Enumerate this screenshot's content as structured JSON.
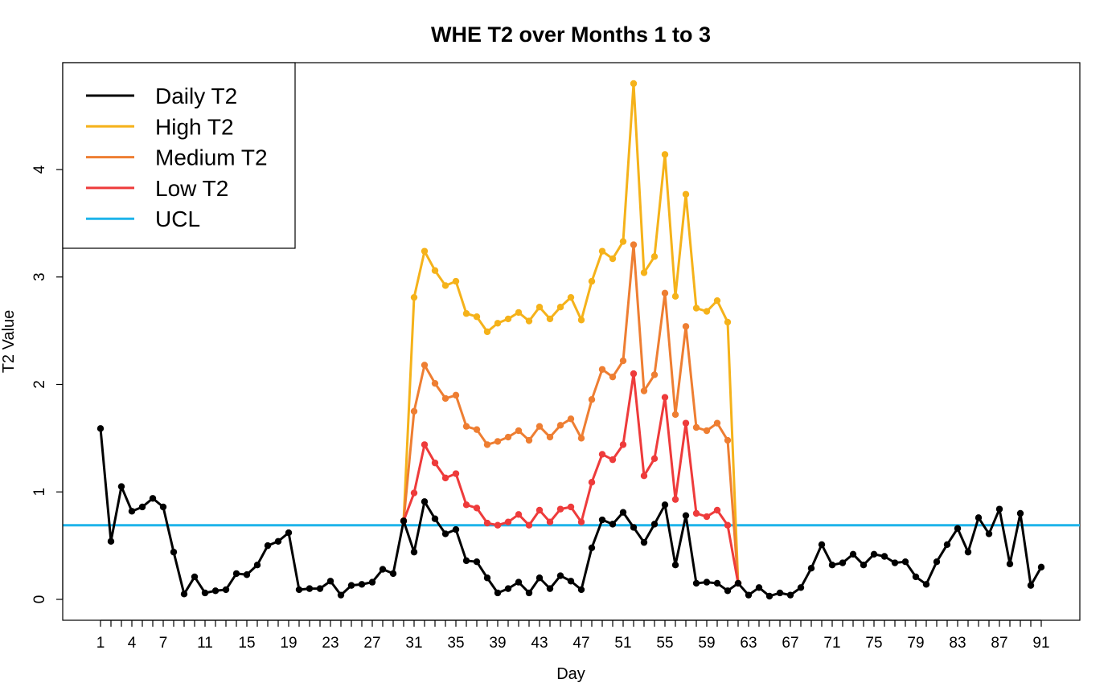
{
  "chart_data": {
    "type": "line",
    "title": "WHE T2 over Months 1 to 3",
    "xlabel": "Day",
    "ylabel": "T2 Value",
    "xlim": [
      1,
      91
    ],
    "ylim": [
      0,
      4.8
    ],
    "x_tick_labels": [
      1,
      4,
      7,
      11,
      15,
      19,
      23,
      27,
      31,
      35,
      39,
      43,
      47,
      51,
      55,
      59,
      63,
      67,
      71,
      75,
      79,
      83,
      87,
      91
    ],
    "x_tick_marks": [
      1,
      2,
      3,
      4,
      5,
      6,
      7,
      8,
      9,
      10,
      11,
      12,
      13,
      14,
      15,
      16,
      17,
      18,
      19,
      20,
      21,
      22,
      23,
      24,
      25,
      26,
      27,
      28,
      29,
      30,
      31,
      32,
      33,
      34,
      35,
      36,
      37,
      38,
      39,
      40,
      41,
      42,
      43,
      44,
      45,
      46,
      47,
      48,
      49,
      50,
      51,
      52,
      53,
      54,
      55,
      56,
      57,
      58,
      59,
      60,
      61,
      62,
      63,
      64,
      65,
      66,
      67,
      68,
      69,
      70,
      71,
      72,
      73,
      74,
      75,
      76,
      77,
      78,
      79,
      80,
      81,
      82,
      83,
      84,
      85,
      86,
      87,
      88,
      89,
      90,
      91
    ],
    "y_ticks": [
      0,
      1,
      2,
      3,
      4
    ],
    "grid": false,
    "legend_position": "top-left",
    "series": [
      {
        "name": "High T2",
        "color": "#F5B21A",
        "x": [
          30,
          31,
          32,
          33,
          34,
          35,
          36,
          37,
          38,
          39,
          40,
          41,
          42,
          43,
          44,
          45,
          46,
          47,
          48,
          49,
          50,
          51,
          52,
          53,
          54,
          55,
          56,
          57,
          58,
          59,
          60,
          61,
          62
        ],
        "values": [
          0.73,
          2.81,
          3.24,
          3.06,
          2.92,
          2.96,
          2.66,
          2.63,
          2.49,
          2.57,
          2.61,
          2.67,
          2.59,
          2.72,
          2.61,
          2.72,
          2.81,
          2.6,
          2.96,
          3.24,
          3.17,
          3.33,
          4.8,
          3.04,
          3.19,
          4.14,
          2.82,
          3.77,
          2.71,
          2.68,
          2.78,
          2.58,
          0.15
        ]
      },
      {
        "name": "Medium T2",
        "color": "#EE7E32",
        "x": [
          30,
          31,
          32,
          33,
          34,
          35,
          36,
          37,
          38,
          39,
          40,
          41,
          42,
          43,
          44,
          45,
          46,
          47,
          48,
          49,
          50,
          51,
          52,
          53,
          54,
          55,
          56,
          57,
          58,
          59,
          60,
          61,
          62
        ],
        "values": [
          0.73,
          1.75,
          2.18,
          2.01,
          1.87,
          1.9,
          1.61,
          1.58,
          1.44,
          1.47,
          1.51,
          1.57,
          1.48,
          1.61,
          1.51,
          1.62,
          1.68,
          1.5,
          1.86,
          2.14,
          2.07,
          2.22,
          3.3,
          1.94,
          2.09,
          2.85,
          1.72,
          2.54,
          1.6,
          1.57,
          1.64,
          1.48,
          0.15
        ]
      },
      {
        "name": "Low T2",
        "color": "#EE3B3B",
        "x": [
          30,
          31,
          32,
          33,
          34,
          35,
          36,
          37,
          38,
          39,
          40,
          41,
          42,
          43,
          44,
          45,
          46,
          47,
          48,
          49,
          50,
          51,
          52,
          53,
          54,
          55,
          56,
          57,
          58,
          59,
          60,
          61,
          62
        ],
        "values": [
          0.73,
          0.99,
          1.44,
          1.27,
          1.13,
          1.17,
          0.88,
          0.85,
          0.71,
          0.69,
          0.72,
          0.79,
          0.69,
          0.83,
          0.72,
          0.84,
          0.86,
          0.72,
          1.09,
          1.35,
          1.3,
          1.44,
          2.1,
          1.15,
          1.31,
          1.88,
          0.93,
          1.64,
          0.8,
          0.77,
          0.83,
          0.69,
          0.15
        ]
      },
      {
        "name": "Daily T2",
        "color": "#000000",
        "x": [
          1,
          2,
          3,
          4,
          5,
          6,
          7,
          8,
          9,
          10,
          11,
          12,
          13,
          14,
          15,
          16,
          17,
          18,
          19,
          20,
          21,
          22,
          23,
          24,
          25,
          26,
          27,
          28,
          29,
          30,
          31,
          32,
          33,
          34,
          35,
          36,
          37,
          38,
          39,
          40,
          41,
          42,
          43,
          44,
          45,
          46,
          47,
          48,
          49,
          50,
          51,
          52,
          53,
          54,
          55,
          56,
          57,
          58,
          59,
          60,
          61,
          62,
          63,
          64,
          65,
          66,
          67,
          68,
          69,
          70,
          71,
          72,
          73,
          74,
          75,
          76,
          77,
          78,
          79,
          80,
          81,
          82,
          83,
          84,
          85,
          86,
          87,
          88,
          89,
          90,
          91
        ],
        "values": [
          1.59,
          0.54,
          1.05,
          0.82,
          0.86,
          0.94,
          0.86,
          0.44,
          0.05,
          0.21,
          0.06,
          0.08,
          0.09,
          0.24,
          0.23,
          0.32,
          0.5,
          0.54,
          0.62,
          0.09,
          0.1,
          0.1,
          0.17,
          0.04,
          0.13,
          0.14,
          0.16,
          0.28,
          0.24,
          0.73,
          0.44,
          0.91,
          0.75,
          0.61,
          0.65,
          0.36,
          0.35,
          0.2,
          0.06,
          0.1,
          0.16,
          0.06,
          0.2,
          0.1,
          0.22,
          0.17,
          0.09,
          0.48,
          0.74,
          0.7,
          0.81,
          0.67,
          0.53,
          0.7,
          0.88,
          0.32,
          0.78,
          0.15,
          0.16,
          0.15,
          0.08,
          0.15,
          0.04,
          0.11,
          0.03,
          0.06,
          0.04,
          0.11,
          0.29,
          0.51,
          0.32,
          0.34,
          0.42,
          0.32,
          0.42,
          0.4,
          0.34,
          0.35,
          0.21,
          0.14,
          0.35,
          0.51,
          0.66,
          0.44,
          0.76,
          0.61,
          0.84,
          0.33,
          0.8,
          0.13,
          0.3
        ]
      }
    ],
    "ucl": {
      "name": "UCL",
      "value": 0.69,
      "color": "#1EB4EA"
    },
    "legend": [
      {
        "name": "Daily T2",
        "color": "#000000"
      },
      {
        "name": "High T2",
        "color": "#F5B21A"
      },
      {
        "name": "Medium T2",
        "color": "#EE7E32"
      },
      {
        "name": "Low T2",
        "color": "#EE3B3B"
      },
      {
        "name": "UCL",
        "color": "#1EB4EA"
      }
    ]
  }
}
